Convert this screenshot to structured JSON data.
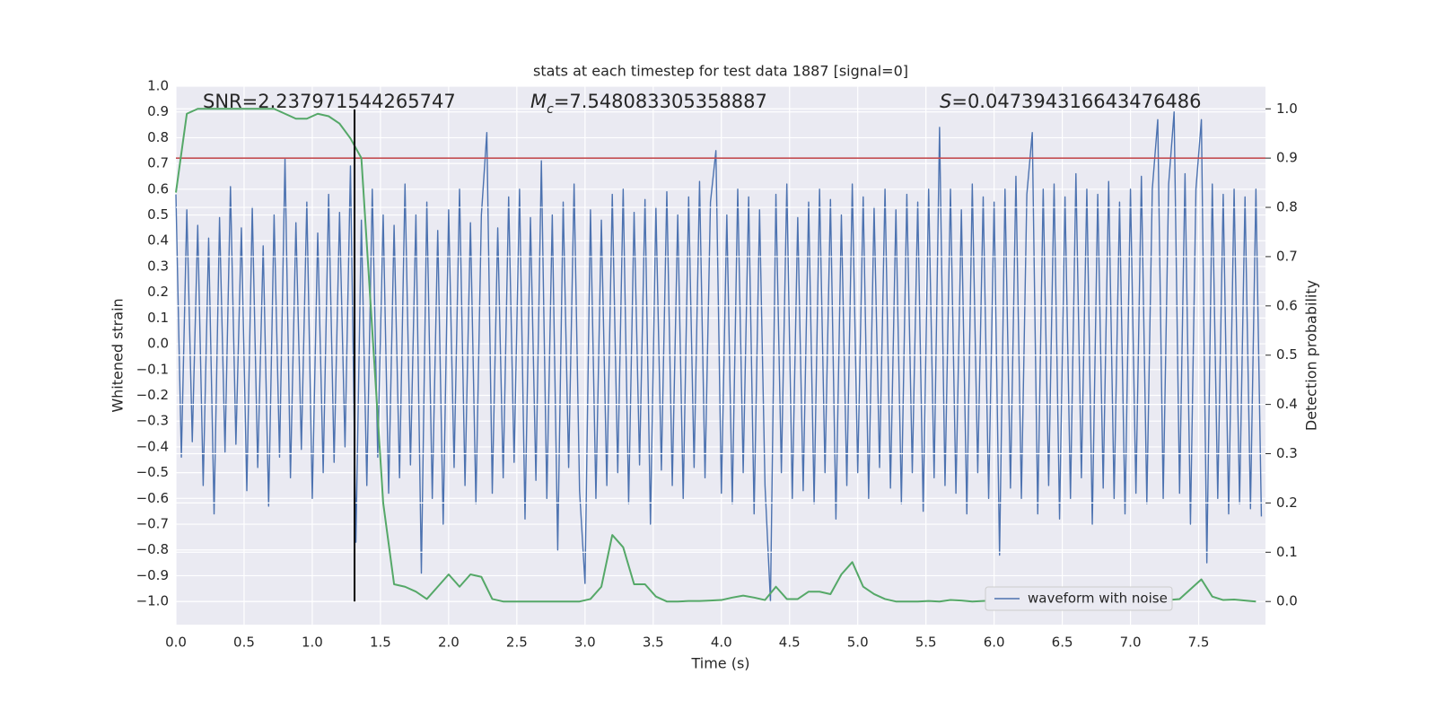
{
  "chart_data": {
    "type": "line",
    "title": "stats at each timestep for test data 1887 [signal=0]",
    "xlabel": "Time (s)",
    "ylabel": "Whitened strain",
    "y2label": "Detection probability",
    "annotations": [
      {
        "text": "SNR=2.237971544265747"
      },
      {
        "symbol": "M",
        "subscript": "c",
        "text": "=7.548083305358887"
      },
      {
        "symbol": "S",
        "text": "=0.047394316643476486"
      }
    ],
    "xlim": [
      0,
      7.99
    ],
    "ylim": [
      -1.09,
      1.0
    ],
    "y2lim": [
      -0.047,
      1.046
    ],
    "xticks": [
      {
        "value": 0,
        "label": "0.0"
      },
      {
        "value": 0.5,
        "label": "0.5"
      },
      {
        "value": 1,
        "label": "1.0"
      },
      {
        "value": 1.5,
        "label": "1.5"
      },
      {
        "value": 2,
        "label": "2.0"
      },
      {
        "value": 2.5,
        "label": "2.5"
      },
      {
        "value": 3,
        "label": "3.0"
      },
      {
        "value": 3.5,
        "label": "3.5"
      },
      {
        "value": 4,
        "label": "4.0"
      },
      {
        "value": 4.5,
        "label": "4.5"
      },
      {
        "value": 5,
        "label": "5.0"
      },
      {
        "value": 5.5,
        "label": "5.5"
      },
      {
        "value": 6,
        "label": "6.0"
      },
      {
        "value": 6.5,
        "label": "6.5"
      },
      {
        "value": 7,
        "label": "7.0"
      },
      {
        "value": 7.5,
        "label": "7.5"
      }
    ],
    "yticks": [
      {
        "value": -1,
        "label": "−1.0"
      },
      {
        "value": -0.9,
        "label": "−0.9"
      },
      {
        "value": -0.8,
        "label": "−0.8"
      },
      {
        "value": -0.7,
        "label": "−0.7"
      },
      {
        "value": -0.6,
        "label": "−0.6"
      },
      {
        "value": -0.5,
        "label": "−0.5"
      },
      {
        "value": -0.4,
        "label": "−0.4"
      },
      {
        "value": -0.3,
        "label": "−0.3"
      },
      {
        "value": -0.2,
        "label": "−0.2"
      },
      {
        "value": -0.1,
        "label": "−0.1"
      },
      {
        "value": 0,
        "label": "0.0"
      },
      {
        "value": 0.1,
        "label": "0.1"
      },
      {
        "value": 0.2,
        "label": "0.2"
      },
      {
        "value": 0.3,
        "label": "0.3"
      },
      {
        "value": 0.4,
        "label": "0.4"
      },
      {
        "value": 0.5,
        "label": "0.5"
      },
      {
        "value": 0.6,
        "label": "0.6"
      },
      {
        "value": 0.7,
        "label": "0.7"
      },
      {
        "value": 0.8,
        "label": "0.8"
      },
      {
        "value": 0.9,
        "label": "0.9"
      },
      {
        "value": 1,
        "label": "1.0"
      }
    ],
    "y2ticks": [
      {
        "value": 0,
        "label": "0.0"
      },
      {
        "value": 0.1,
        "label": "0.1"
      },
      {
        "value": 0.2,
        "label": "0.2"
      },
      {
        "value": 0.3,
        "label": "0.3"
      },
      {
        "value": 0.4,
        "label": "0.4"
      },
      {
        "value": 0.5,
        "label": "0.5"
      },
      {
        "value": 0.6,
        "label": "0.6"
      },
      {
        "value": 0.7,
        "label": "0.7"
      },
      {
        "value": 0.8,
        "label": "0.8"
      },
      {
        "value": 0.9,
        "label": "0.9"
      },
      {
        "value": 1,
        "label": "1.0"
      }
    ],
    "grid": true,
    "legend": "lower right",
    "hline": {
      "value": 0.9,
      "axis": "y2",
      "color": "#c44e52"
    },
    "vline": {
      "x": 1.31,
      "y": [
        -1.0,
        0.91
      ],
      "color": "#000000"
    },
    "series": [
      {
        "name": "waveform with noise",
        "color": "#4c72b0",
        "x": [
          0,
          0.04,
          0.08,
          0.12,
          0.16,
          0.2,
          0.24,
          0.28,
          0.32,
          0.36,
          0.4,
          0.44,
          0.48,
          0.52,
          0.56,
          0.6,
          0.64,
          0.68,
          0.72,
          0.76,
          0.8,
          0.84,
          0.88,
          0.92,
          0.96,
          1,
          1.04,
          1.08,
          1.12,
          1.16,
          1.2,
          1.24,
          1.28,
          1.32,
          1.36,
          1.4,
          1.44,
          1.48,
          1.52,
          1.56,
          1.6,
          1.64,
          1.68,
          1.72,
          1.76,
          1.8,
          1.84,
          1.88,
          1.92,
          1.96,
          2,
          2.04,
          2.08,
          2.12,
          2.16,
          2.2,
          2.24,
          2.28,
          2.32,
          2.36,
          2.4,
          2.44,
          2.48,
          2.52,
          2.56,
          2.6,
          2.64,
          2.68,
          2.72,
          2.76,
          2.8,
          2.84,
          2.88,
          2.92,
          2.96,
          3,
          3.04,
          3.08,
          3.12,
          3.16,
          3.2,
          3.24,
          3.28,
          3.32,
          3.36,
          3.4,
          3.44,
          3.48,
          3.52,
          3.56,
          3.6,
          3.64,
          3.68,
          3.72,
          3.76,
          3.8,
          3.84,
          3.88,
          3.92,
          3.96,
          4,
          4.04,
          4.08,
          4.12,
          4.16,
          4.2,
          4.24,
          4.28,
          4.32,
          4.36,
          4.4,
          4.44,
          4.48,
          4.52,
          4.56,
          4.6,
          4.64,
          4.68,
          4.72,
          4.76,
          4.8,
          4.84,
          4.88,
          4.92,
          4.96,
          5,
          5.04,
          5.08,
          5.12,
          5.16,
          5.2,
          5.24,
          5.28,
          5.32,
          5.36,
          5.4,
          5.44,
          5.48,
          5.52,
          5.56,
          5.6,
          5.64,
          5.68,
          5.72,
          5.76,
          5.8,
          5.84,
          5.88,
          5.92,
          5.96,
          6,
          6.04,
          6.08,
          6.12,
          6.16,
          6.2,
          6.24,
          6.28,
          6.32,
          6.36,
          6.4,
          6.44,
          6.48,
          6.52,
          6.56,
          6.6,
          6.64,
          6.68,
          6.72,
          6.76,
          6.8,
          6.84,
          6.88,
          6.92,
          6.96,
          7,
          7.04,
          7.08,
          7.12,
          7.16,
          7.2,
          7.24,
          7.28,
          7.32,
          7.36,
          7.4,
          7.44,
          7.48,
          7.52,
          7.56,
          7.6,
          7.64,
          7.68,
          7.72,
          7.76,
          7.8,
          7.84,
          7.88,
          7.92,
          7.96
        ],
        "values": [
          0.58,
          -0.44,
          0.52,
          -0.38,
          0.46,
          -0.55,
          0.41,
          -0.66,
          0.49,
          -0.42,
          0.61,
          -0.39,
          0.45,
          -0.57,
          0.53,
          -0.48,
          0.38,
          -0.63,
          0.5,
          -0.44,
          0.72,
          -0.52,
          0.47,
          -0.41,
          0.55,
          -0.6,
          0.43,
          -0.5,
          0.58,
          -0.46,
          0.51,
          -0.4,
          0.69,
          -0.77,
          0.48,
          -0.55,
          0.6,
          -0.44,
          0.5,
          -0.58,
          0.46,
          -0.52,
          0.62,
          -0.47,
          0.5,
          -0.89,
          0.55,
          -0.6,
          0.44,
          -0.7,
          0.52,
          -0.48,
          0.6,
          -0.55,
          0.47,
          -0.62,
          0.5,
          0.82,
          -0.58,
          0.45,
          -0.52,
          0.57,
          -0.46,
          0.6,
          -0.68,
          0.49,
          -0.53,
          0.71,
          -0.6,
          0.5,
          -0.8,
          0.55,
          -0.48,
          0.62,
          -0.57,
          -0.93,
          0.52,
          -0.6,
          0.48,
          -0.55,
          0.58,
          -0.5,
          0.6,
          -0.62,
          0.51,
          -0.47,
          0.56,
          -0.7,
          0.53,
          -0.49,
          0.59,
          -0.55,
          0.5,
          -0.6,
          0.57,
          -0.48,
          0.63,
          -0.52,
          0.55,
          0.75,
          -0.58,
          0.5,
          -0.62,
          0.6,
          -0.5,
          0.57,
          -0.66,
          0.52,
          -0.55,
          -1.0,
          0.58,
          -0.5,
          0.62,
          -0.6,
          0.49,
          -0.57,
          0.55,
          -0.62,
          0.6,
          -0.5,
          0.56,
          -0.68,
          0.5,
          -0.55,
          0.62,
          -0.5,
          0.57,
          -0.6,
          0.53,
          -0.48,
          0.6,
          -0.56,
          0.52,
          -0.62,
          0.58,
          -0.5,
          0.55,
          -0.65,
          0.6,
          -0.52,
          0.84,
          -0.55,
          0.6,
          -0.58,
          0.52,
          -0.66,
          0.62,
          -0.5,
          0.57,
          -0.6,
          0.55,
          -0.82,
          0.6,
          -0.56,
          0.65,
          -0.6,
          0.58,
          0.82,
          -0.66,
          0.6,
          -0.55,
          0.62,
          -0.68,
          0.57,
          -0.6,
          0.66,
          -0.52,
          0.6,
          -0.7,
          0.58,
          -0.56,
          0.63,
          -0.6,
          0.55,
          -0.66,
          0.6,
          -0.58,
          0.65,
          -0.62,
          0.6,
          0.87,
          -0.6,
          0.62,
          0.9,
          -0.58,
          0.66,
          -0.7,
          0.6,
          0.87,
          -0.85,
          0.62,
          -0.6,
          0.58,
          -0.66,
          0.6,
          -0.62,
          0.57,
          -0.64,
          0.6,
          -0.67
        ]
      },
      {
        "color": "#55a868",
        "axis": "y2",
        "x": [
          0,
          0.08,
          0.16,
          0.24,
          0.32,
          0.4,
          0.48,
          0.56,
          0.64,
          0.72,
          0.8,
          0.88,
          0.96,
          1.04,
          1.12,
          1.2,
          1.28,
          1.36,
          1.44,
          1.52,
          1.6,
          1.68,
          1.76,
          1.84,
          1.92,
          2,
          2.08,
          2.16,
          2.24,
          2.32,
          2.4,
          2.48,
          2.56,
          2.64,
          2.72,
          2.8,
          2.88,
          2.96,
          3.04,
          3.12,
          3.2,
          3.28,
          3.36,
          3.44,
          3.52,
          3.6,
          3.68,
          3.76,
          3.84,
          3.92,
          4,
          4.08,
          4.16,
          4.24,
          4.32,
          4.4,
          4.48,
          4.56,
          4.64,
          4.72,
          4.8,
          4.88,
          4.96,
          5.04,
          5.12,
          5.2,
          5.28,
          5.36,
          5.44,
          5.52,
          5.6,
          5.68,
          5.76,
          5.84,
          5.92,
          6,
          6.08,
          6.16,
          6.24,
          6.32,
          6.4,
          6.48,
          6.56,
          6.64,
          6.72,
          6.8,
          6.88,
          6.96,
          7.04,
          7.12,
          7.2,
          7.28,
          7.36,
          7.44,
          7.52,
          7.6,
          7.68,
          7.76,
          7.84,
          7.92
        ],
        "values": [
          0.83,
          0.99,
          1.0,
          1.0,
          1.0,
          1.0,
          1.0,
          1.0,
          1.0,
          1.0,
          0.99,
          0.98,
          0.98,
          0.99,
          0.985,
          0.97,
          0.94,
          0.9,
          0.55,
          0.2,
          0.035,
          0.03,
          0.02,
          0.005,
          0.03,
          0.055,
          0.03,
          0.055,
          0.05,
          0.005,
          0.0,
          0.0,
          0.0,
          0.0,
          0.0,
          0.0,
          0.0,
          0.0,
          0.005,
          0.03,
          0.135,
          0.11,
          0.035,
          0.035,
          0.01,
          0.0,
          0.0,
          0.001,
          0.001,
          0.002,
          0.003,
          0.008,
          0.012,
          0.008,
          0.003,
          0.03,
          0.005,
          0.005,
          0.02,
          0.02,
          0.015,
          0.055,
          0.08,
          0.03,
          0.015,
          0.005,
          0.0,
          0.0,
          0.0,
          0.001,
          0.0,
          0.003,
          0.002,
          0.0,
          0.001,
          0.002,
          0.001,
          0.0,
          0.001,
          0.003,
          0.01,
          0.015,
          0.008,
          0.006,
          0.004,
          0.002,
          0.001,
          0.001,
          0.001,
          0.002,
          0.003,
          0.003,
          0.005,
          0.025,
          0.045,
          0.01,
          0.003,
          0.004,
          0.002,
          0.0
        ]
      }
    ]
  }
}
